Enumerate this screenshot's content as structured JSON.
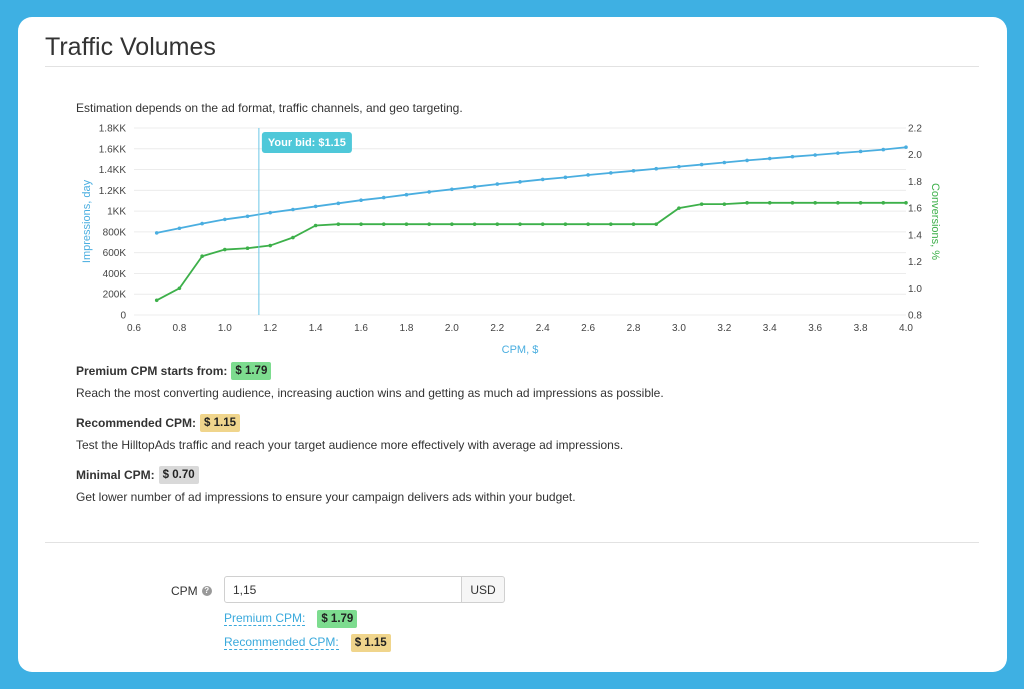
{
  "title": "Traffic Volumes",
  "description": "Estimation depends on the ad format, traffic channels, and geo targeting.",
  "chart_data": {
    "type": "line",
    "xlabel": "CPM, $",
    "ylabel_left": "Impressions, day",
    "ylabel_right": "Conversions, %",
    "xlim": [
      0.6,
      4.0
    ],
    "ylim_left": [
      0,
      1800
    ],
    "ylim_right": [
      0.8,
      2.2
    ],
    "x_ticks": [
      "0.6",
      "0.8",
      "1.0",
      "1.2",
      "1.4",
      "1.6",
      "1.8",
      "2.0",
      "2.2",
      "2.4",
      "2.6",
      "2.8",
      "3.0",
      "3.2",
      "3.4",
      "3.6",
      "3.8",
      "4.0"
    ],
    "y_left_ticks": [
      "0",
      "200K",
      "400K",
      "600K",
      "800K",
      "1KK",
      "1.2KK",
      "1.4KK",
      "1.6KK",
      "1.8KK"
    ],
    "y_right_ticks": [
      "0.8",
      "1.0",
      "1.2",
      "1.4",
      "1.6",
      "1.8",
      "2.0",
      "2.2"
    ],
    "grid": true,
    "colors": {
      "impressions": "#4aaee0",
      "conversions": "#3db04a",
      "bid_line": "#6cc7e6",
      "bid_label_bg": "#4fc8d9"
    },
    "bid_marker": {
      "x": 1.15,
      "label": "Your bid: $1.15"
    },
    "x": [
      0.7,
      0.8,
      0.9,
      1.0,
      1.1,
      1.2,
      1.3,
      1.4,
      1.5,
      1.6,
      1.7,
      1.8,
      1.9,
      2.0,
      2.1,
      2.2,
      2.3,
      2.4,
      2.5,
      2.6,
      2.7,
      2.8,
      2.9,
      3.0,
      3.1,
      3.2,
      3.3,
      3.4,
      3.5,
      3.6,
      3.7,
      3.8,
      3.9,
      4.0
    ],
    "series": [
      {
        "name": "Impressions, day",
        "axis": "left",
        "values": [
          790,
          835,
          880,
          920,
          950,
          985,
          1015,
          1045,
          1075,
          1105,
          1130,
          1158,
          1185,
          1210,
          1235,
          1260,
          1282,
          1305,
          1325,
          1348,
          1368,
          1388,
          1408,
          1428,
          1448,
          1468,
          1488,
          1506,
          1524,
          1540,
          1558,
          1574,
          1592,
          1615
        ]
      },
      {
        "name": "Conversions, %",
        "axis": "right",
        "values": [
          0.91,
          1.0,
          1.24,
          1.29,
          1.3,
          1.32,
          1.38,
          1.47,
          1.48,
          1.48,
          1.48,
          1.48,
          1.48,
          1.48,
          1.48,
          1.48,
          1.48,
          1.48,
          1.48,
          1.48,
          1.48,
          1.48,
          1.48,
          1.6,
          1.63,
          1.63,
          1.64,
          1.64,
          1.64,
          1.64,
          1.64,
          1.64,
          1.64,
          1.64
        ]
      }
    ]
  },
  "premium": {
    "label": "Premium CPM starts from:",
    "value": "$ 1.79",
    "text": "Reach the most converting audience, increasing auction wins and getting as much ad impressions as possible."
  },
  "recommended": {
    "label": "Recommended CPM:",
    "value": "$ 1.15",
    "text": "Test the HilltopAds traffic and reach your target audience more effectively with average ad impressions."
  },
  "minimal": {
    "label": "Minimal CPM:",
    "value": "$ 0.70",
    "text": "Get lower number of ad impressions to ensure your campaign delivers ads within your budget."
  },
  "form": {
    "cpm_label": "CPM",
    "help_icon": "question-circle-icon",
    "cpm_value": "1,15",
    "currency": "USD",
    "premium_link": "Premium CPM:",
    "premium_value": "$ 1.79",
    "recommended_link": "Recommended CPM:",
    "recommended_value": "$ 1.15"
  }
}
